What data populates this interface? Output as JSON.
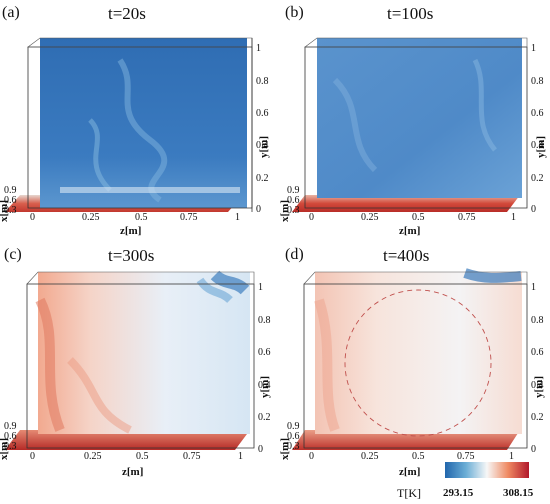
{
  "panels": [
    {
      "label": "(a)",
      "title": "t=20s"
    },
    {
      "label": "(b)",
      "title": "t=100s"
    },
    {
      "label": "(c)",
      "title": "t=300s"
    },
    {
      "label": "(d)",
      "title": "t=400s"
    }
  ],
  "axes": {
    "y_label": "y[m]",
    "z_label": "z[m]",
    "x_label": "x[m]",
    "y_ticks": [
      "0",
      "0.2",
      "0.4",
      "0.6",
      "0.8",
      "1"
    ],
    "z_ticks": [
      "0",
      "0.25",
      "0.5",
      "0.75",
      "1"
    ],
    "x_ticks": [
      "0.9",
      "0.6",
      "0.3"
    ]
  },
  "colorbar": {
    "title": "T[K]",
    "min_label": "293.15",
    "max_label": "308.15",
    "colors": [
      "#2166ac",
      "#6baed6",
      "#f7f7f7",
      "#ef8a62",
      "#b2182b"
    ]
  }
}
